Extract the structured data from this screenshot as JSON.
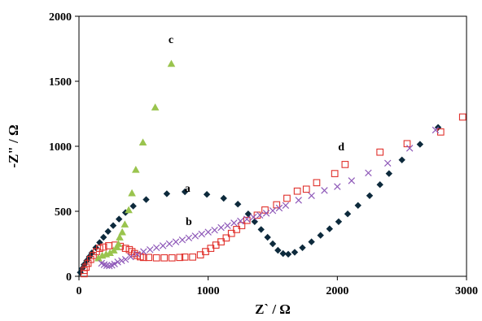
{
  "chart_data": {
    "type": "scatter",
    "xlabel": "Z` / Ω",
    "ylabel": "-Z\" / Ω",
    "xlim": [
      0,
      3000
    ],
    "ylim": [
      0,
      2000
    ],
    "xticks": [
      "0",
      "1000",
      "2000",
      "3000"
    ],
    "yticks": [
      "0",
      "500",
      "1000",
      "1500",
      "2000"
    ],
    "grid": false,
    "series": [
      {
        "name": "a",
        "marker": "diamond",
        "color": "#0d2a3c",
        "label_at": [
          840,
          650
        ],
        "points": [
          [
            10,
            30
          ],
          [
            25,
            60
          ],
          [
            40,
            90
          ],
          [
            60,
            120
          ],
          [
            80,
            150
          ],
          [
            100,
            180
          ],
          [
            130,
            220
          ],
          [
            160,
            260
          ],
          [
            190,
            300
          ],
          [
            225,
            345
          ],
          [
            265,
            390
          ],
          [
            310,
            440
          ],
          [
            360,
            490
          ],
          [
            420,
            540
          ],
          [
            520,
            590
          ],
          [
            680,
            635
          ],
          [
            820,
            650
          ],
          [
            990,
            630
          ],
          [
            1120,
            600
          ],
          [
            1230,
            555
          ],
          [
            1310,
            480
          ],
          [
            1360,
            420
          ],
          [
            1410,
            360
          ],
          [
            1460,
            300
          ],
          [
            1500,
            250
          ],
          [
            1540,
            200
          ],
          [
            1580,
            175
          ],
          [
            1620,
            170
          ],
          [
            1670,
            185
          ],
          [
            1730,
            220
          ],
          [
            1800,
            265
          ],
          [
            1870,
            315
          ],
          [
            1940,
            365
          ],
          [
            2010,
            420
          ],
          [
            2080,
            480
          ],
          [
            2160,
            545
          ],
          [
            2250,
            620
          ],
          [
            2330,
            705
          ],
          [
            2400,
            790
          ],
          [
            2500,
            895
          ],
          [
            2640,
            1015
          ],
          [
            2780,
            1145
          ]
        ]
      },
      {
        "name": "b",
        "marker": "square-open",
        "color": "#e0302b",
        "label_at": [
          850,
          395
        ],
        "points": [
          [
            40,
            20
          ],
          [
            40,
            45
          ],
          [
            55,
            70
          ],
          [
            70,
            100
          ],
          [
            90,
            130
          ],
          [
            110,
            160
          ],
          [
            135,
            190
          ],
          [
            160,
            215
          ],
          [
            190,
            225
          ],
          [
            230,
            235
          ],
          [
            280,
            240
          ],
          [
            320,
            230
          ],
          [
            360,
            215
          ],
          [
            390,
            205
          ],
          [
            410,
            190
          ],
          [
            430,
            175
          ],
          [
            450,
            160
          ],
          [
            475,
            150
          ],
          [
            500,
            145
          ],
          [
            540,
            145
          ],
          [
            600,
            142
          ],
          [
            660,
            142
          ],
          [
            720,
            142
          ],
          [
            780,
            145
          ],
          [
            820,
            148
          ],
          [
            880,
            148
          ],
          [
            940,
            165
          ],
          [
            980,
            190
          ],
          [
            1020,
            215
          ],
          [
            1060,
            240
          ],
          [
            1100,
            265
          ],
          [
            1140,
            295
          ],
          [
            1180,
            330
          ],
          [
            1220,
            360
          ],
          [
            1260,
            390
          ],
          [
            1300,
            430
          ],
          [
            1380,
            470
          ],
          [
            1440,
            510
          ],
          [
            1530,
            550
          ],
          [
            1610,
            600
          ],
          [
            1690,
            655
          ],
          [
            1760,
            670
          ],
          [
            1840,
            720
          ],
          [
            1980,
            790
          ],
          [
            2060,
            860
          ],
          [
            2330,
            955
          ],
          [
            2540,
            1020
          ],
          [
            2800,
            1110
          ],
          [
            2970,
            1225
          ]
        ]
      },
      {
        "name": "c",
        "marker": "triangle",
        "color": "#9ac44e",
        "label_at": [
          712,
          1795
        ],
        "points": [
          [
            150,
            140
          ],
          [
            180,
            160
          ],
          [
            210,
            170
          ],
          [
            240,
            180
          ],
          [
            270,
            200
          ],
          [
            295,
            225
          ],
          [
            305,
            250
          ],
          [
            315,
            300
          ],
          [
            335,
            340
          ],
          [
            355,
            400
          ],
          [
            385,
            510
          ],
          [
            410,
            640
          ],
          [
            440,
            820
          ],
          [
            495,
            1030
          ],
          [
            590,
            1300
          ],
          [
            715,
            1635
          ]
        ]
      },
      {
        "name": "d",
        "marker": "x",
        "color": "#8e58b8",
        "label_at": [
          2030,
          970
        ],
        "points": [
          [
            175,
            100
          ],
          [
            195,
            90
          ],
          [
            215,
            83
          ],
          [
            235,
            80
          ],
          [
            255,
            85
          ],
          [
            275,
            95
          ],
          [
            300,
            110
          ],
          [
            330,
            120
          ],
          [
            360,
            130
          ],
          [
            400,
            150
          ],
          [
            450,
            170
          ],
          [
            500,
            190
          ],
          [
            550,
            205
          ],
          [
            600,
            220
          ],
          [
            650,
            235
          ],
          [
            700,
            250
          ],
          [
            750,
            265
          ],
          [
            800,
            280
          ],
          [
            850,
            295
          ],
          [
            900,
            310
          ],
          [
            950,
            325
          ],
          [
            1000,
            340
          ],
          [
            1050,
            355
          ],
          [
            1100,
            375
          ],
          [
            1150,
            390
          ],
          [
            1200,
            410
          ],
          [
            1250,
            425
          ],
          [
            1300,
            440
          ],
          [
            1350,
            455
          ],
          [
            1400,
            470
          ],
          [
            1450,
            485
          ],
          [
            1500,
            505
          ],
          [
            1550,
            525
          ],
          [
            1600,
            545
          ],
          [
            1700,
            585
          ],
          [
            1800,
            620
          ],
          [
            1900,
            660
          ],
          [
            2000,
            690
          ],
          [
            2110,
            735
          ],
          [
            2240,
            795
          ],
          [
            2390,
            870
          ],
          [
            2560,
            985
          ],
          [
            2760,
            1125
          ]
        ]
      }
    ]
  }
}
